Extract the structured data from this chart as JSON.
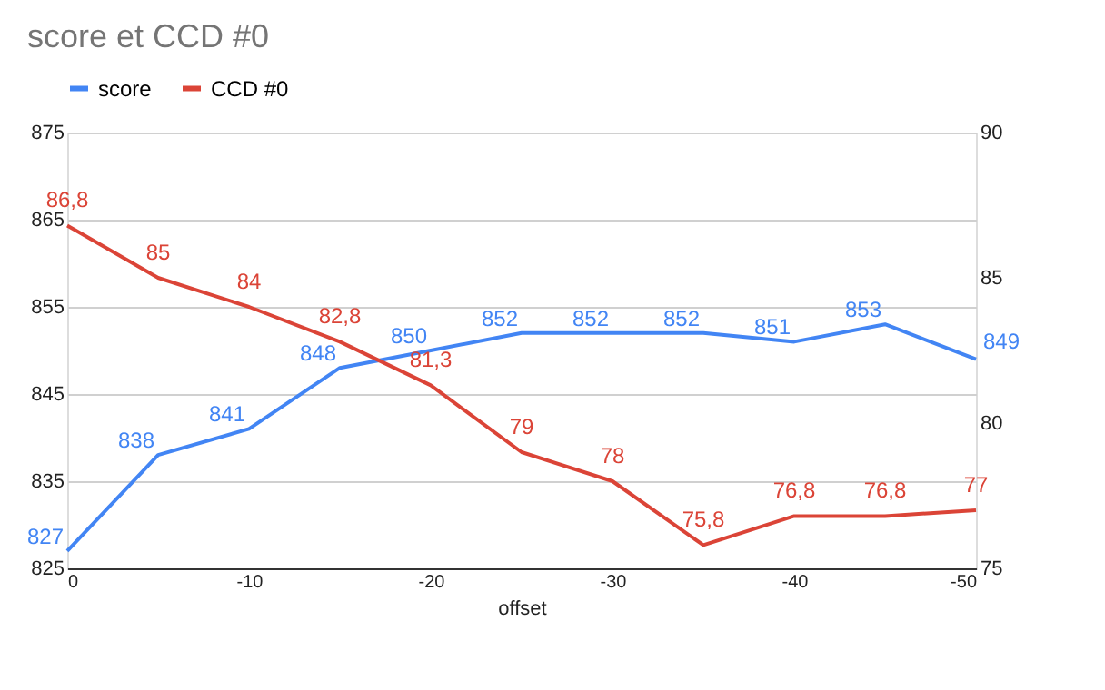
{
  "chart_data": {
    "type": "line",
    "title": "score et CCD #0",
    "xlabel": "offset",
    "x": [
      0,
      -5,
      -10,
      -15,
      -20,
      -25,
      -30,
      -35,
      -40,
      -45,
      -50
    ],
    "series": [
      {
        "name": "score",
        "color": "#4285f4",
        "values": [
          827,
          838,
          841,
          848,
          850,
          852,
          852,
          852,
          851,
          853,
          849
        ],
        "value_labels": [
          "827",
          "838",
          "841",
          "848",
          "850",
          "852",
          "852",
          "852",
          "851",
          "853",
          "849"
        ]
      },
      {
        "name": "CCD #0",
        "color": "#db4437",
        "axis": "y2",
        "values": [
          86.8,
          85,
          84,
          82.8,
          81.3,
          79,
          78,
          75.8,
          76.8,
          76.8,
          77
        ],
        "value_labels": [
          "86,8",
          "85",
          "84",
          "82,8",
          "81,3",
          "79",
          "78",
          "75,8",
          "76,8",
          "76,8",
          "77"
        ]
      }
    ],
    "xlim": [
      0,
      -50
    ],
    "xticks": [
      0,
      -10,
      -20,
      -30,
      -40,
      -50
    ],
    "ylim": [
      825,
      875
    ],
    "yticks": [
      825,
      835,
      845,
      855,
      865,
      875
    ],
    "y2lim": [
      75,
      90
    ],
    "y2ticks": [
      75,
      80,
      85,
      90
    ],
    "grid": "y",
    "legend": "top",
    "marker": "none",
    "line_style": "solid"
  }
}
